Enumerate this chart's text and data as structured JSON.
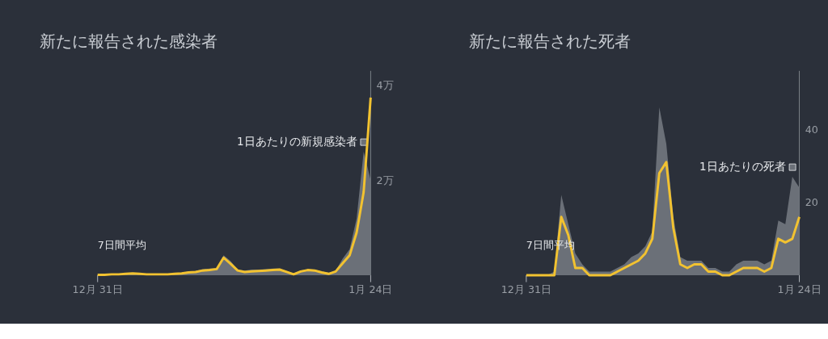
{
  "chart_data": [
    {
      "type": "line",
      "title": "新たに報告された感染者",
      "categories": [
        "12月 31日",
        null,
        null,
        null,
        null,
        null,
        null,
        null,
        null,
        null,
        null,
        null,
        null,
        null,
        null,
        null,
        null,
        null,
        null,
        null,
        null,
        null,
        null,
        null,
        null,
        null,
        null,
        null,
        null,
        null,
        null,
        null,
        null,
        null,
        null,
        null,
        null,
        null,
        null,
        "1月 24日"
      ],
      "ylim": [
        0,
        4.3
      ],
      "yticks": [
        {
          "value": 2,
          "label": "2万"
        },
        {
          "value": 4,
          "label": "4万"
        }
      ],
      "grid": false,
      "series": [
        {
          "name": "1日あたりの新規感染者",
          "type": "area",
          "color": "#6b7078",
          "values": [
            0.02,
            0.02,
            0.02,
            0.03,
            0.04,
            0.05,
            0.04,
            0.03,
            0.03,
            0.03,
            0.03,
            0.04,
            0.05,
            0.08,
            0.09,
            0.13,
            0.14,
            0.15,
            0.42,
            0.3,
            0.12,
            0.1,
            0.12,
            0.12,
            0.13,
            0.14,
            0.14,
            0.09,
            0.04,
            0.1,
            0.13,
            0.12,
            0.08,
            0.05,
            0.1,
            0.35,
            0.55,
            1.2,
            2.6,
            2.0
          ]
        },
        {
          "name": "7日間平均",
          "color": "#f2c230",
          "values": [
            0.01,
            0.01,
            0.02,
            0.02,
            0.03,
            0.04,
            0.03,
            0.02,
            0.02,
            0.02,
            0.02,
            0.03,
            0.04,
            0.06,
            0.07,
            0.1,
            0.11,
            0.13,
            0.37,
            0.24,
            0.1,
            0.07,
            0.08,
            0.09,
            0.1,
            0.11,
            0.12,
            0.07,
            0.02,
            0.08,
            0.11,
            0.1,
            0.06,
            0.03,
            0.08,
            0.25,
            0.42,
            0.9,
            1.75,
            3.74
          ]
        }
      ]
    },
    {
      "type": "line",
      "title": "新たに報告された死者",
      "categories": [
        "12月 31日",
        null,
        null,
        null,
        null,
        null,
        null,
        null,
        null,
        null,
        null,
        null,
        null,
        null,
        null,
        null,
        null,
        null,
        null,
        null,
        null,
        null,
        null,
        null,
        null,
        null,
        null,
        null,
        null,
        null,
        null,
        null,
        null,
        null,
        null,
        null,
        null,
        null,
        null,
        "1月 24日"
      ],
      "ylim": [
        0,
        56
      ],
      "yticks": [
        20,
        40
      ],
      "grid": false,
      "series": [
        {
          "name": "1日あたりの死者",
          "type": "area",
          "color": "#6b7078",
          "values": [
            0,
            0,
            0,
            0,
            1,
            22,
            14,
            6,
            3,
            1,
            1,
            1,
            1,
            2,
            3,
            5,
            6,
            8,
            12,
            46,
            36,
            16,
            5,
            4,
            4,
            4,
            2,
            2,
            1,
            1,
            3,
            4,
            4,
            4,
            3,
            4,
            15,
            14,
            27,
            24
          ]
        },
        {
          "name": "7日間平均",
          "color": "#f2c230",
          "values": [
            0,
            0,
            0,
            0,
            0,
            16,
            11,
            2,
            2,
            0,
            0,
            0,
            0,
            1,
            2,
            3,
            4,
            6,
            10,
            28,
            31,
            13,
            3,
            2,
            3,
            3,
            1,
            1,
            0,
            0,
            1,
            2,
            2,
            2,
            1,
            2,
            10,
            9,
            10,
            16
          ]
        }
      ]
    }
  ]
}
